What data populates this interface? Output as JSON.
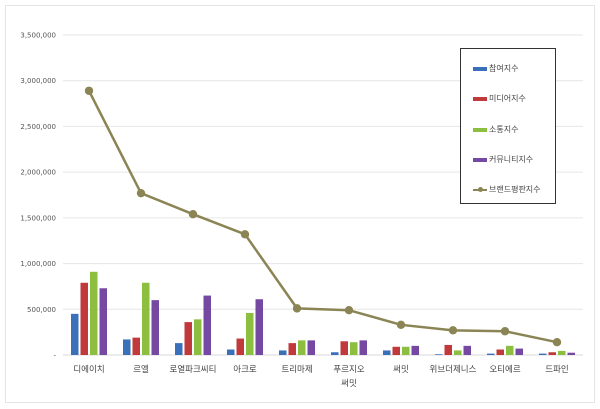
{
  "chart_data": {
    "type": "bar",
    "title": "",
    "xlabel": "",
    "ylabel": "",
    "ylim": [
      0,
      3500000
    ],
    "yticks": [
      "-",
      "500,000",
      "1,000,000",
      "1,500,000",
      "2,000,000",
      "2,500,000",
      "3,000,000",
      "3,500,000"
    ],
    "grid": true,
    "legend_position": "right-inside",
    "categories": [
      "디에이치",
      "르엘",
      "로열파크씨티",
      "아크로",
      "트리마제",
      "푸르지오 써밋",
      "써밋",
      "위브더제니스",
      "오티에르",
      "드파인"
    ],
    "series": [
      {
        "name": "참여지수",
        "type": "bar",
        "color": "#3a6fba",
        "values": [
          450000,
          170000,
          130000,
          60000,
          50000,
          30000,
          50000,
          8000,
          15000,
          15000
        ]
      },
      {
        "name": "미디어지수",
        "type": "bar",
        "color": "#c0393b",
        "values": [
          790000,
          190000,
          360000,
          180000,
          130000,
          150000,
          90000,
          110000,
          60000,
          30000
        ]
      },
      {
        "name": "소통지수",
        "type": "bar",
        "color": "#8cbf3f",
        "values": [
          910000,
          790000,
          390000,
          460000,
          160000,
          140000,
          90000,
          50000,
          100000,
          45000
        ]
      },
      {
        "name": "커뮤니티지수",
        "type": "bar",
        "color": "#7549a1",
        "values": [
          730000,
          600000,
          650000,
          610000,
          160000,
          160000,
          100000,
          100000,
          70000,
          25000
        ]
      },
      {
        "name": "브랜드평판지수",
        "type": "line",
        "color": "#8b8454",
        "values": [
          2890000,
          1770000,
          1540000,
          1320000,
          510000,
          490000,
          330000,
          270000,
          260000,
          140000
        ]
      }
    ]
  }
}
